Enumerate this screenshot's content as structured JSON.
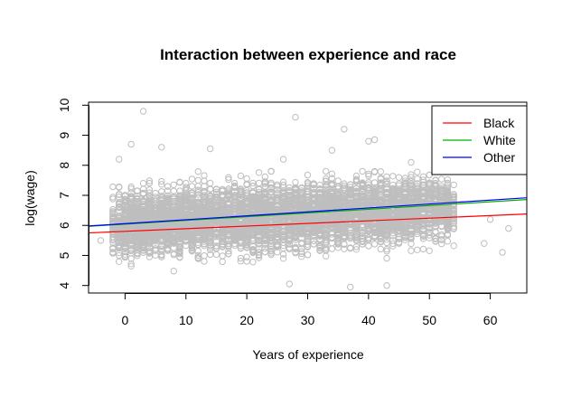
{
  "chart_data": {
    "type": "scatter",
    "title": "Interaction between experience and race",
    "xlabel": "Years of experience",
    "ylabel": "log(wage)",
    "xlim": [
      -6,
      66
    ],
    "ylim": [
      3.75,
      10.1
    ],
    "xticks": [
      0,
      10,
      20,
      30,
      40,
      50,
      60
    ],
    "yticks": [
      4,
      5,
      6,
      7,
      8,
      9,
      10
    ],
    "grid": false,
    "legend_position": "top-right",
    "scatter_color": "#BEBEBE",
    "scatter_marker": "open-circle",
    "fit_lines": [
      {
        "name": "Black",
        "color": "#FF0000",
        "x": [
          -6,
          66
        ],
        "y": [
          5.75,
          6.38
        ]
      },
      {
        "name": "White",
        "color": "#00B000",
        "x": [
          -6,
          66
        ],
        "y": [
          5.97,
          6.86
        ]
      },
      {
        "name": "Other",
        "color": "#0000FF",
        "x": [
          -6,
          66
        ],
        "y": [
          5.98,
          6.92
        ]
      }
    ],
    "outliers": [
      {
        "x": 3,
        "y": 9.8
      },
      {
        "x": 28,
        "y": 9.6
      },
      {
        "x": 36,
        "y": 9.2
      },
      {
        "x": 1,
        "y": 8.7
      },
      {
        "x": 6,
        "y": 8.6
      },
      {
        "x": 14,
        "y": 8.55
      },
      {
        "x": 40,
        "y": 8.8
      },
      {
        "x": 41,
        "y": 8.85
      },
      {
        "x": 34,
        "y": 8.5
      },
      {
        "x": 47,
        "y": 8.1
      },
      {
        "x": -1,
        "y": 8.2
      },
      {
        "x": 26,
        "y": 8.2
      },
      {
        "x": 43,
        "y": 4.0
      },
      {
        "x": 37,
        "y": 3.95
      },
      {
        "x": 27,
        "y": 4.05
      },
      {
        "x": 62,
        "y": 5.1
      },
      {
        "x": 63,
        "y": 5.9
      },
      {
        "x": -4,
        "y": 5.5
      },
      {
        "x": 59,
        "y": 5.4
      },
      {
        "x": 60,
        "y": 6.2
      }
    ]
  }
}
